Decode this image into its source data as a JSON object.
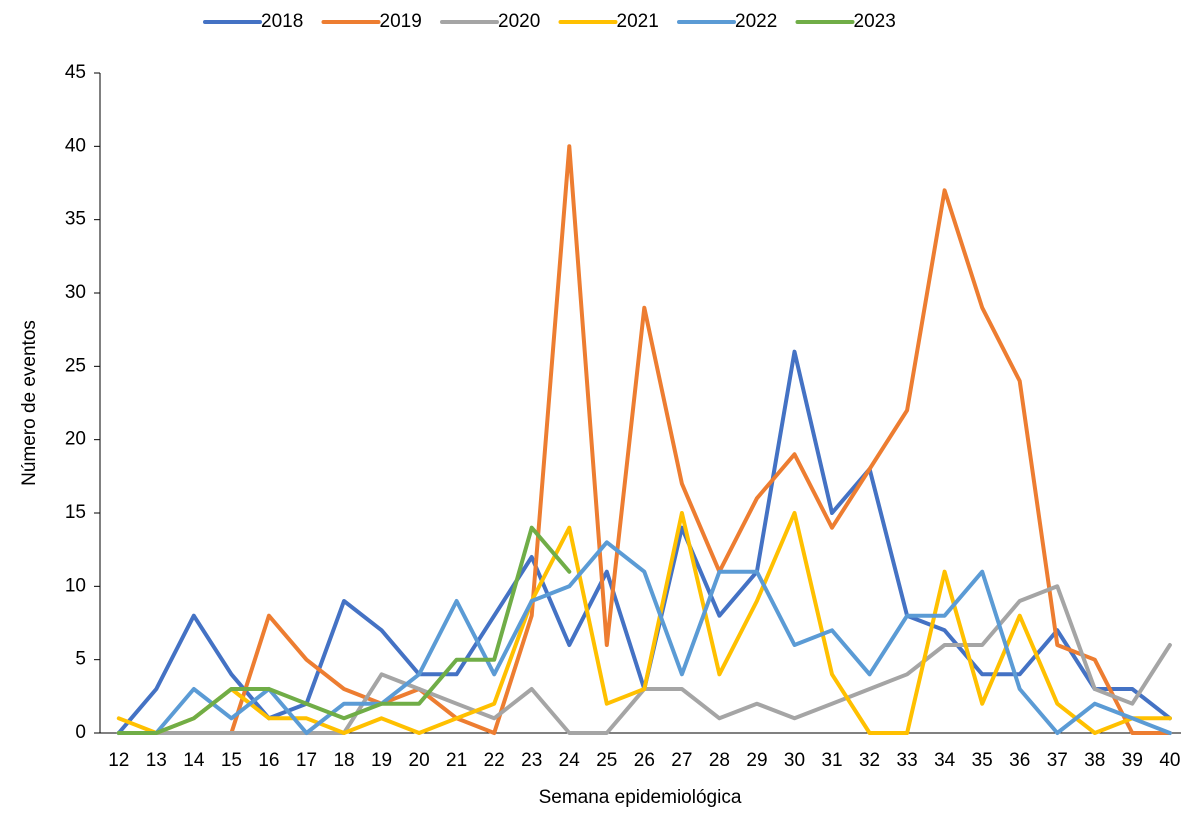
{
  "chart_data": {
    "type": "line",
    "x_label": "Semana epidemiológica",
    "y_label": "Número de eventos",
    "categories": [
      "12",
      "13",
      "14",
      "15",
      "16",
      "17",
      "18",
      "19",
      "20",
      "21",
      "22",
      "23",
      "24",
      "25",
      "26",
      "27",
      "28",
      "29",
      "30",
      "31",
      "32",
      "33",
      "34",
      "35",
      "36",
      "37",
      "38",
      "39",
      "40"
    ],
    "ylim": [
      0,
      45
    ],
    "yticks": [
      0,
      5,
      10,
      15,
      20,
      25,
      30,
      35,
      40,
      45
    ],
    "grid": false,
    "legend": "top",
    "series": [
      {
        "name": "2018",
        "color": "#4472c4",
        "values": [
          0,
          3,
          8,
          4,
          1,
          2,
          9,
          7,
          4,
          4,
          8,
          12,
          6,
          11,
          3,
          14,
          8,
          11,
          26,
          15,
          18,
          8,
          7,
          4,
          4,
          7,
          3,
          3,
          1
        ]
      },
      {
        "name": "2019",
        "color": "#ed7d31",
        "values": [
          0,
          0,
          0,
          0,
          8,
          5,
          3,
          2,
          3,
          1,
          0,
          8,
          40,
          6,
          29,
          17,
          11,
          16,
          19,
          14,
          18,
          22,
          37,
          29,
          24,
          6,
          5,
          0,
          0
        ]
      },
      {
        "name": "2020",
        "color": "#a5a5a5",
        "values": [
          0,
          0,
          0,
          0,
          0,
          0,
          0,
          4,
          3,
          2,
          1,
          3,
          0,
          0,
          3,
          3,
          1,
          2,
          1,
          2,
          3,
          4,
          6,
          6,
          9,
          10,
          3,
          2,
          6
        ]
      },
      {
        "name": "2021",
        "color": "#ffc000",
        "values": [
          1,
          0,
          1,
          3,
          1,
          1,
          0,
          1,
          0,
          1,
          2,
          9,
          14,
          2,
          3,
          15,
          4,
          9,
          15,
          4,
          0,
          0,
          11,
          2,
          8,
          2,
          0,
          1,
          1
        ]
      },
      {
        "name": "2022",
        "color": "#5b9bd5",
        "values": [
          0,
          0,
          3,
          1,
          3,
          0,
          2,
          2,
          4,
          9,
          4,
          9,
          10,
          13,
          11,
          4,
          11,
          11,
          6,
          7,
          4,
          8,
          8,
          11,
          3,
          0,
          2,
          1,
          0
        ]
      },
      {
        "name": "2023",
        "color": "#70ad47",
        "values": [
          0,
          0,
          1,
          3,
          3,
          2,
          1,
          2,
          2,
          5,
          5,
          14,
          11,
          null,
          null,
          null,
          null,
          null,
          null,
          null,
          null,
          null,
          null,
          null,
          null,
          null,
          null,
          null,
          null
        ]
      }
    ]
  }
}
